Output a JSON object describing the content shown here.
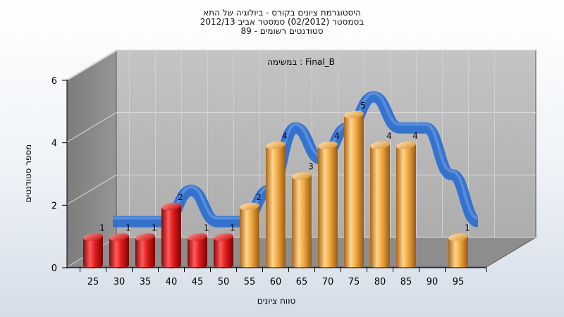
{
  "chart_data": {
    "type": "bar",
    "title_lines": [
      "היסטוגרמת ציונים בקורס - ביולוגיה של התא",
      "בסמסטר  (02/2012)  סמסטר אביב 2012/13",
      "סטודנטים רשומים - 89"
    ],
    "annotation": "במשימה : Final_B",
    "xlabel": "טווח ציונים",
    "ylabel": "מספר סטודנטים",
    "categories": [
      "25",
      "30",
      "35",
      "40",
      "45",
      "50",
      "55",
      "60",
      "65",
      "70",
      "75",
      "80",
      "85",
      "90",
      "95"
    ],
    "values": [
      1,
      1,
      1,
      2,
      1,
      1,
      2,
      4,
      3,
      4,
      5,
      4,
      4,
      0,
      1
    ],
    "bar_colors": [
      "#e01b1b",
      "#e01b1b",
      "#e01b1b",
      "#e01b1b",
      "#e01b1b",
      "#e01b1b",
      "#f0a840",
      "#f0a840",
      "#f0a840",
      "#f0a840",
      "#f0a840",
      "#f0a840",
      "#f0a840",
      "#f0a840",
      "#f0a840"
    ],
    "curve_color": "#2e6fcf",
    "y_ticks": [
      "0",
      "2",
      "4",
      "6"
    ],
    "ylim": [
      0,
      6
    ],
    "grid": true
  }
}
